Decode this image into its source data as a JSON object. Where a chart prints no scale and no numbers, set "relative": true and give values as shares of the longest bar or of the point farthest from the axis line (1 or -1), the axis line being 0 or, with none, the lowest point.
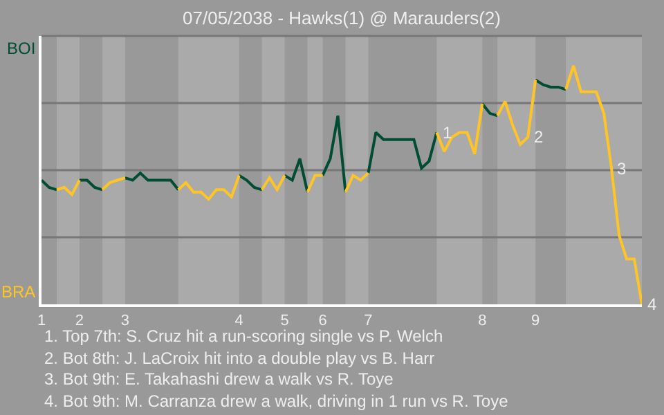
{
  "chart_data": {
    "type": "line",
    "title": "07/05/2038 - Hawks(1) @ Marauders(2)",
    "relative": true,
    "categories": [
      "1",
      null,
      null,
      null,
      null,
      "2",
      null,
      null,
      null,
      null,
      null,
      "3",
      null,
      null,
      null,
      null,
      null,
      null,
      null,
      null,
      null,
      null,
      null,
      null,
      null,
      null,
      "4",
      null,
      null,
      null,
      null,
      null,
      "5",
      null,
      null,
      null,
      null,
      "6",
      null,
      null,
      null,
      null,
      null,
      "7",
      null,
      null,
      null,
      null,
      null,
      null,
      null,
      null,
      null,
      null,
      null,
      null,
      null,
      null,
      "8",
      null,
      null,
      null,
      null,
      null,
      null,
      "9",
      null,
      null,
      null,
      null,
      null,
      null,
      null,
      null,
      null,
      null,
      null,
      null,
      null,
      null
    ],
    "grid": "y",
    "marker": "none",
    "line_style": "solid",
    "series": [
      {
        "color": "#004d33",
        "values": [
          0.52,
          0.49,
          0.48,
          null,
          null,
          0.52,
          0.52,
          0.49,
          0.48,
          null,
          null,
          0.53,
          0.52,
          0.55,
          0.52,
          0.52,
          0.52,
          0.52,
          0.48,
          null,
          null,
          null,
          null,
          null,
          null,
          null,
          0.54,
          0.52,
          0.49,
          0.48,
          null,
          null,
          0.54,
          0.52,
          0.61,
          0.47,
          null,
          0.54,
          0.61,
          0.79,
          0.47,
          null,
          null,
          0.55,
          0.72,
          0.69,
          0.69,
          0.69,
          0.69,
          0.69,
          0.57,
          0.6,
          0.72,
          null,
          null,
          null,
          null,
          null,
          0.84,
          0.8,
          0.79,
          null,
          null,
          null,
          null,
          0.94,
          0.92,
          0.91,
          0.91,
          0.9,
          null,
          null,
          null,
          null,
          null,
          null,
          null,
          null,
          null,
          null
        ]
      },
      {
        "color": "#ffc425",
        "values": [
          null,
          null,
          0.48,
          0.49,
          0.46,
          0.52,
          null,
          null,
          0.48,
          0.51,
          0.52,
          0.53,
          null,
          null,
          null,
          null,
          null,
          null,
          0.48,
          0.51,
          0.47,
          0.47,
          0.44,
          0.48,
          0.48,
          0.45,
          0.54,
          null,
          null,
          0.48,
          0.53,
          0.48,
          0.54,
          null,
          null,
          0.47,
          0.54,
          0.54,
          null,
          null,
          0.47,
          0.54,
          0.52,
          0.55,
          null,
          null,
          null,
          null,
          null,
          null,
          null,
          null,
          0.72,
          0.64,
          0.7,
          0.72,
          0.72,
          0.63,
          0.84,
          null,
          0.79,
          0.85,
          0.75,
          0.67,
          0.7,
          0.94,
          null,
          null,
          null,
          0.9,
          1,
          0.89,
          0.89,
          0.89,
          0.8,
          0.57,
          0.29,
          0.19,
          0.19,
          0
        ]
      }
    ],
    "annotations": [
      "BOI",
      "BRA",
      "1",
      "2",
      "3",
      "4",
      "1. Top 7th: S. Cruz hit a run-scoring single vs P. Welch",
      "2. Bot 8th: J. LaCroix hit into a double play vs B. Harr",
      "3. Bot 9th: E. Takahashi drew a walk vs R. Toye",
      "4. Bot 9th: M. Carranza drew a walk, driving in 1 run vs R. Toye"
    ]
  }
}
